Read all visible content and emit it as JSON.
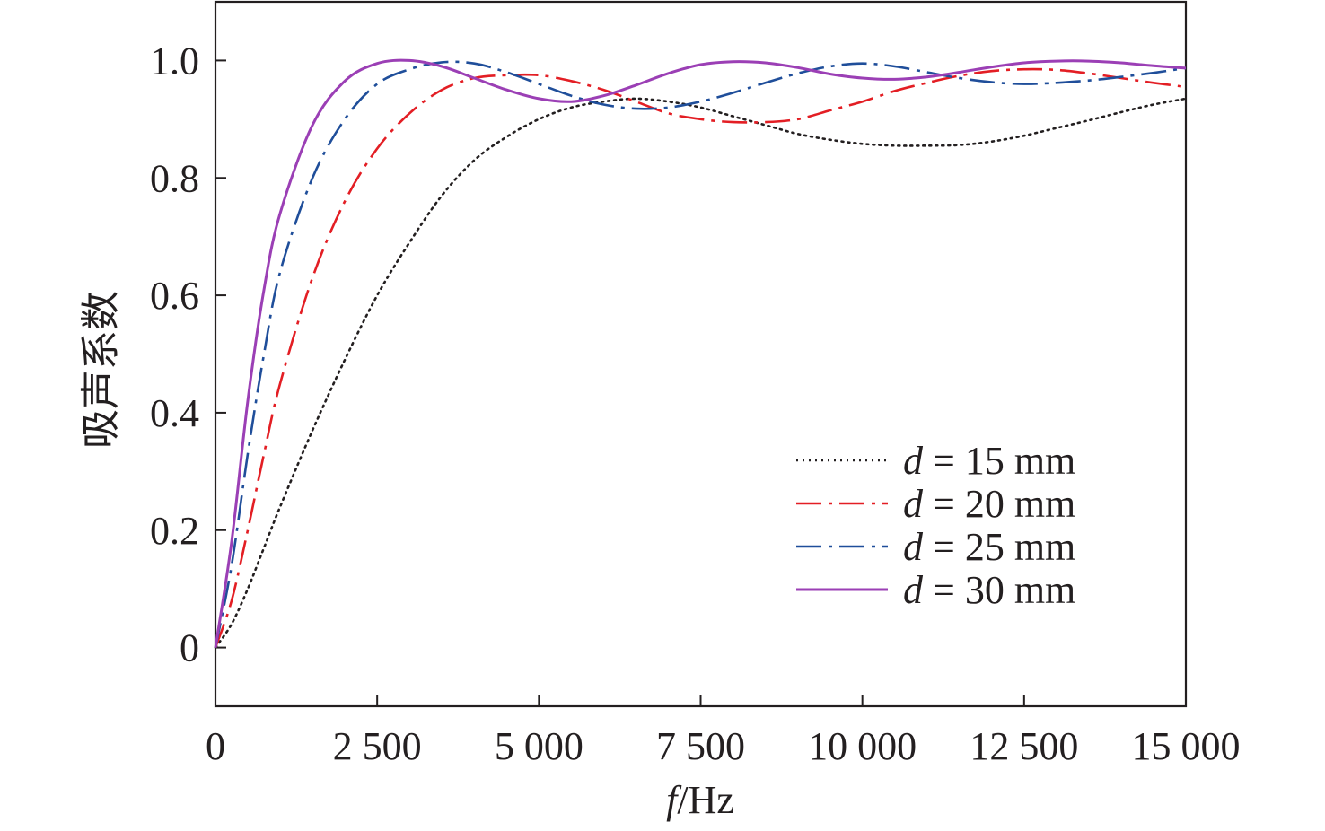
{
  "chart_data": {
    "type": "line",
    "xlabel": {
      "var": "f",
      "unit": "/Hz"
    },
    "ylabel": "吸声系数",
    "xlim": [
      0,
      15000
    ],
    "ylim": [
      -0.1,
      1.1
    ],
    "xticks": [
      0,
      2500,
      5000,
      7500,
      10000,
      12500,
      15000
    ],
    "xtick_labels": [
      "0",
      "2 500",
      "5 000",
      "7 500",
      "10 000",
      "12 500",
      "15 000"
    ],
    "yticks": [
      0,
      0.2,
      0.4,
      0.6,
      0.8,
      1.0
    ],
    "ytick_labels": [
      "0",
      "0.2",
      "0.4",
      "0.6",
      "0.8",
      "1.0"
    ],
    "grid": false,
    "legend": {
      "position": "lower-right"
    },
    "series": [
      {
        "name": {
          "var": "d",
          "rest": " = 15 mm"
        },
        "color": "#231f20",
        "dash": "dotted",
        "x": [
          0,
          250,
          500,
          750,
          1000,
          1500,
          2000,
          2500,
          3000,
          3500,
          4000,
          4500,
          5000,
          5500,
          6000,
          6500,
          7000,
          7500,
          8000,
          8500,
          9000,
          9500,
          10000,
          10500,
          11000,
          11500,
          12000,
          12500,
          13000,
          13500,
          14000,
          14500,
          15000
        ],
        "y": [
          0,
          0.04,
          0.1,
          0.17,
          0.24,
          0.37,
          0.49,
          0.6,
          0.69,
          0.77,
          0.83,
          0.87,
          0.9,
          0.92,
          0.93,
          0.935,
          0.93,
          0.92,
          0.905,
          0.89,
          0.875,
          0.865,
          0.858,
          0.855,
          0.855,
          0.856,
          0.862,
          0.872,
          0.885,
          0.898,
          0.912,
          0.925,
          0.935
        ]
      },
      {
        "name": {
          "var": "d",
          "rest": " = 20 mm"
        },
        "color": "#e31e24",
        "dash": "dashdot",
        "x": [
          0,
          250,
          500,
          750,
          1000,
          1500,
          2000,
          2500,
          3000,
          3500,
          4000,
          4500,
          5000,
          5500,
          6000,
          6500,
          7000,
          7500,
          8000,
          8500,
          9000,
          9500,
          10000,
          10500,
          11000,
          11500,
          12000,
          12500,
          13000,
          13500,
          14000,
          14500,
          15000
        ],
        "y": [
          0,
          0.08,
          0.2,
          0.33,
          0.45,
          0.63,
          0.76,
          0.85,
          0.91,
          0.95,
          0.97,
          0.975,
          0.975,
          0.965,
          0.95,
          0.93,
          0.91,
          0.9,
          0.895,
          0.895,
          0.9,
          0.915,
          0.93,
          0.948,
          0.962,
          0.974,
          0.982,
          0.985,
          0.984,
          0.978,
          0.97,
          0.962,
          0.955
        ]
      },
      {
        "name": {
          "var": "d",
          "rest": " = 25 mm"
        },
        "color": "#1f4e9a",
        "dash": "dashdot",
        "x": [
          0,
          250,
          500,
          750,
          1000,
          1500,
          2000,
          2500,
          3000,
          3500,
          4000,
          4500,
          5000,
          5500,
          6000,
          6500,
          7000,
          7500,
          8000,
          8500,
          9000,
          9500,
          10000,
          10500,
          11000,
          11500,
          12000,
          12500,
          13000,
          13500,
          14000,
          14500,
          15000
        ],
        "y": [
          0,
          0.14,
          0.33,
          0.5,
          0.64,
          0.8,
          0.9,
          0.96,
          0.985,
          0.997,
          0.995,
          0.98,
          0.96,
          0.94,
          0.925,
          0.918,
          0.92,
          0.93,
          0.945,
          0.962,
          0.978,
          0.99,
          0.995,
          0.99,
          0.98,
          0.97,
          0.963,
          0.96,
          0.962,
          0.966,
          0.972,
          0.979,
          0.987
        ]
      },
      {
        "name": {
          "var": "d",
          "rest": " = 30 mm"
        },
        "color": "#9b3fb5",
        "dash": "solid",
        "x": [
          0,
          250,
          500,
          750,
          1000,
          1500,
          2000,
          2500,
          3000,
          3500,
          4000,
          4500,
          5000,
          5500,
          6000,
          6500,
          7000,
          7500,
          8000,
          8500,
          9000,
          9500,
          10000,
          10500,
          11000,
          11500,
          12000,
          12500,
          13000,
          13500,
          14000,
          14500,
          15000
        ],
        "y": [
          0,
          0.18,
          0.42,
          0.61,
          0.74,
          0.89,
          0.965,
          0.995,
          1.0,
          0.99,
          0.97,
          0.95,
          0.935,
          0.93,
          0.94,
          0.958,
          0.978,
          0.993,
          0.998,
          0.996,
          0.988,
          0.977,
          0.97,
          0.968,
          0.972,
          0.98,
          0.989,
          0.996,
          0.999,
          0.999,
          0.996,
          0.991,
          0.987
        ]
      }
    ]
  }
}
